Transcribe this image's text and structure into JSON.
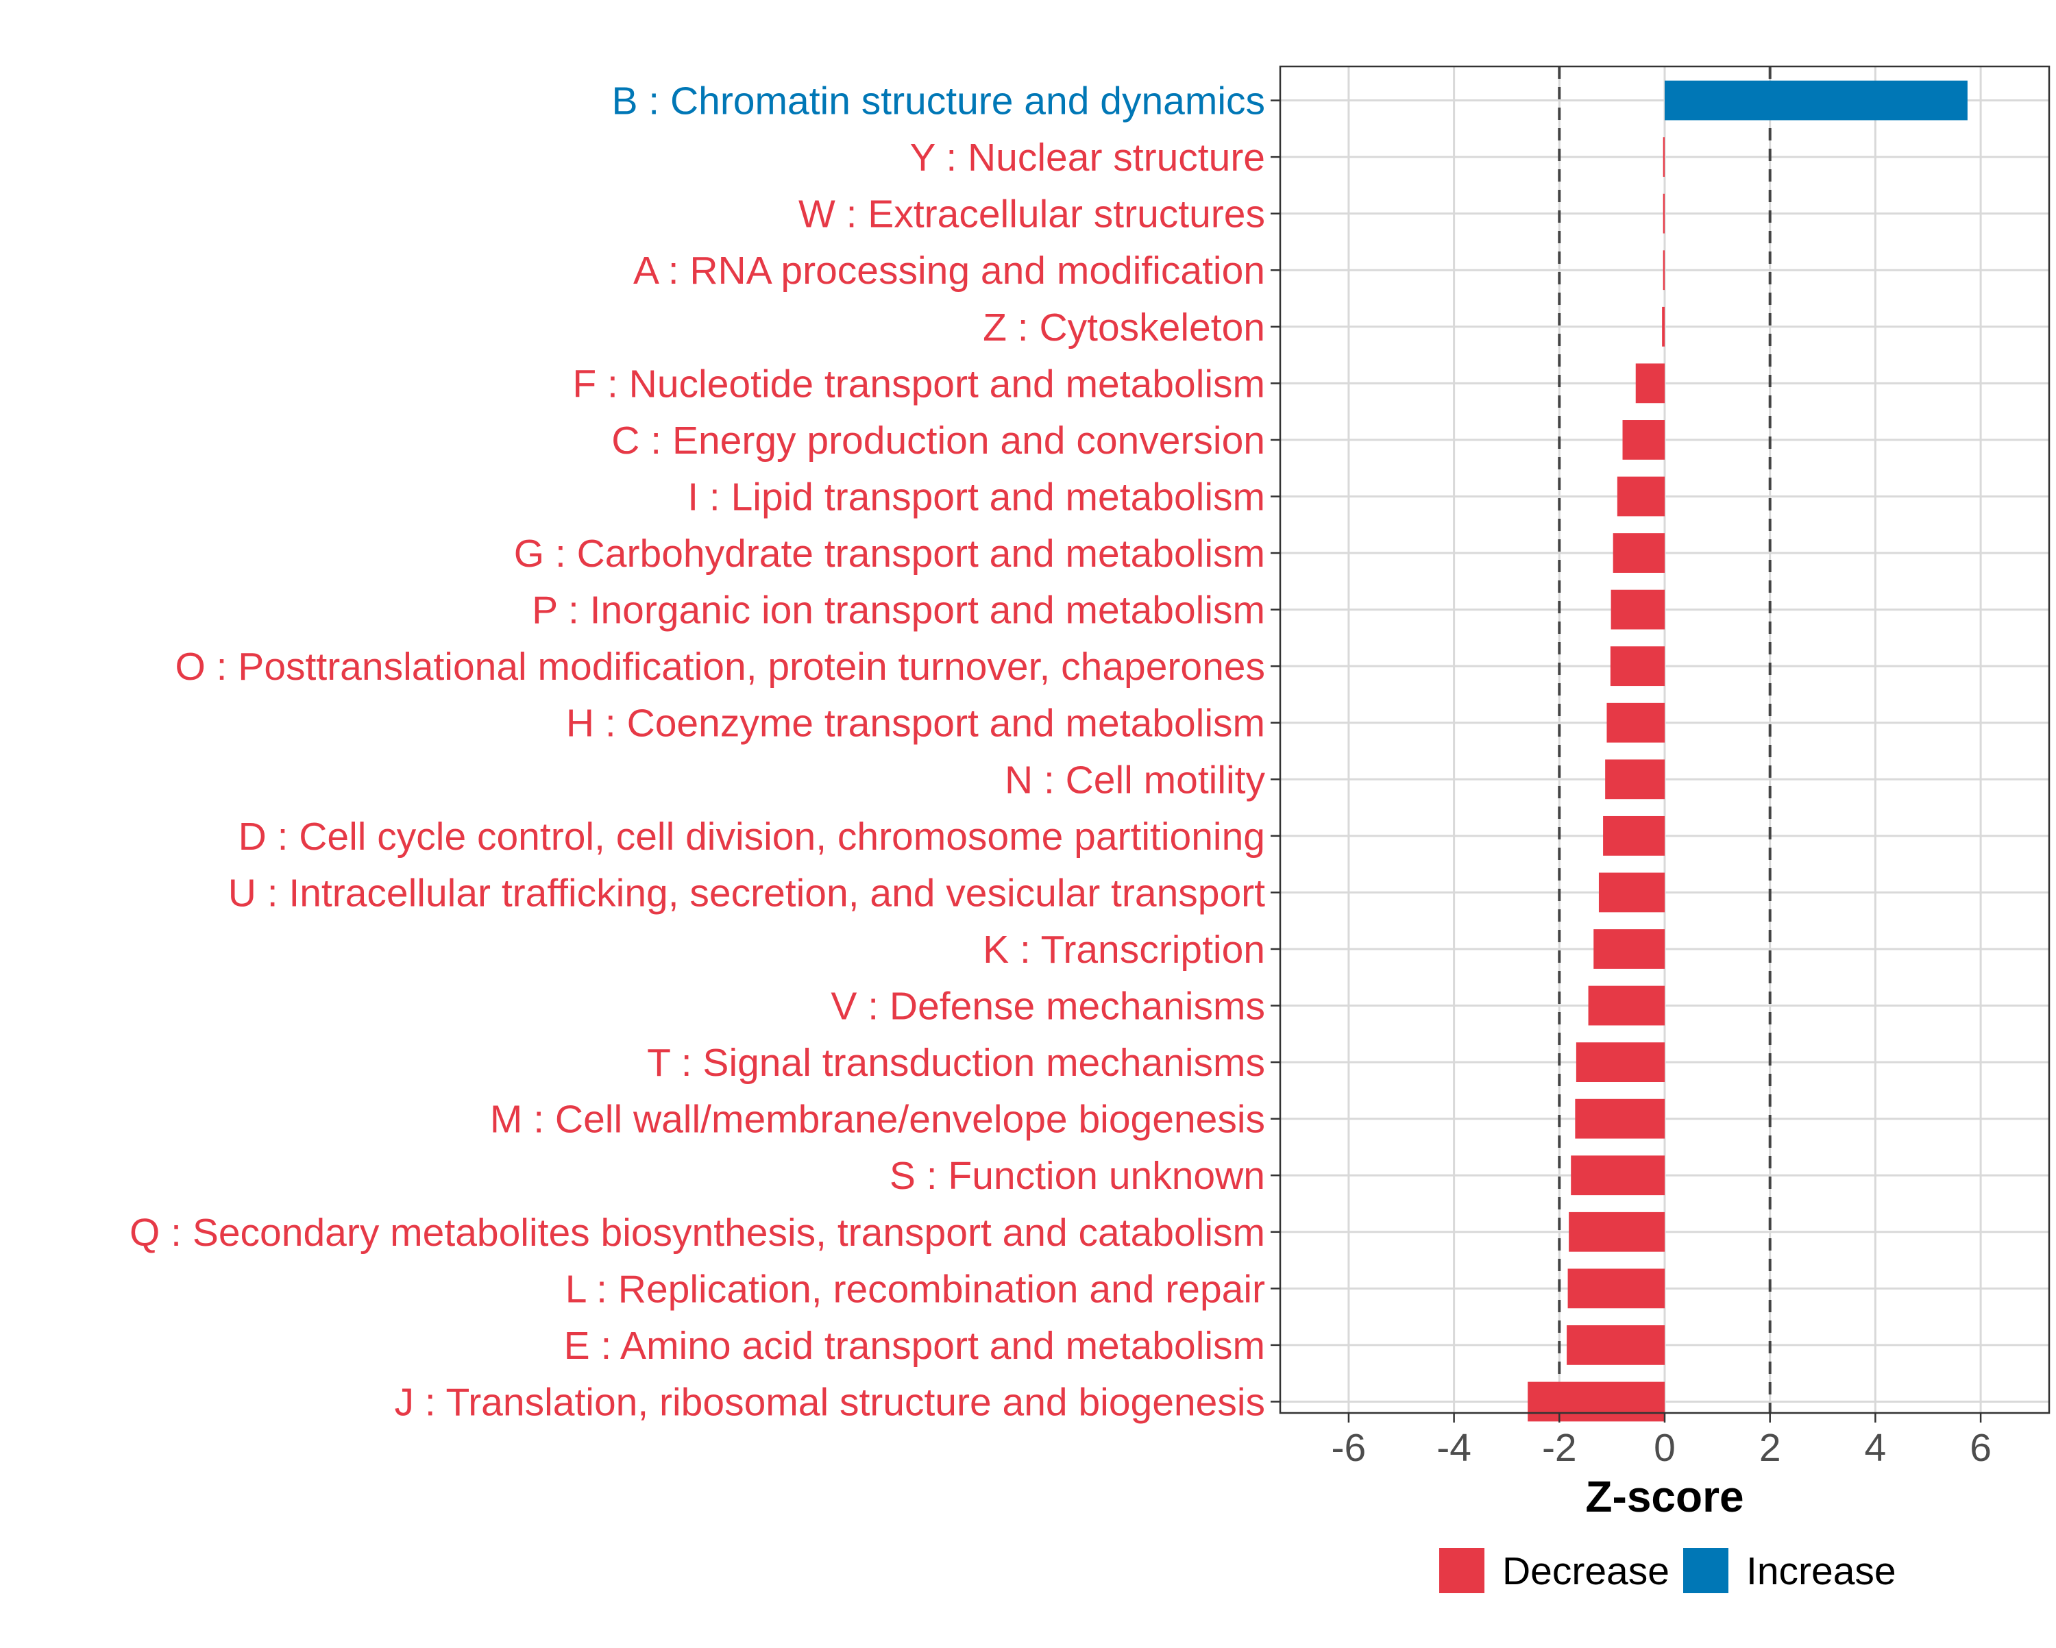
{
  "chart_data": {
    "type": "bar",
    "orientation": "horizontal",
    "title": "",
    "xlabel": "Z-score",
    "ylabel": "",
    "xlim": [
      -7.3,
      7.3
    ],
    "xticks": [
      -6,
      -4,
      -2,
      0,
      2,
      4,
      6
    ],
    "reference_lines": [
      -2,
      2
    ],
    "grid": true,
    "legend_position": "bottom",
    "colors": {
      "Decrease": "#e63946",
      "Increase": "#0077b6"
    },
    "legend": [
      {
        "label": "Decrease",
        "color": "#e63946"
      },
      {
        "label": "Increase",
        "color": "#0077b6"
      }
    ],
    "categories": [
      "B : Chromatin structure and dynamics",
      "Y : Nuclear structure",
      "W : Extracellular structures",
      "A : RNA processing and modification",
      "Z : Cytoskeleton",
      "F : Nucleotide transport and metabolism",
      "C : Energy production and conversion",
      "I : Lipid transport and metabolism",
      "G : Carbohydrate transport and metabolism",
      "P : Inorganic ion transport and metabolism",
      "O : Posttranslational modification, protein turnover, chaperones",
      "H : Coenzyme transport and metabolism",
      "N : Cell motility",
      "D : Cell cycle control, cell division, chromosome partitioning",
      "U : Intracellular trafficking, secretion, and vesicular transport",
      "K : Transcription",
      "V : Defense mechanisms",
      "T : Signal transduction mechanisms",
      "M : Cell wall/membrane/envelope biogenesis",
      "S : Function unknown",
      "Q : Secondary metabolites biosynthesis, transport and catabolism",
      "L : Replication, recombination and repair",
      "E : Amino acid transport and metabolism",
      "J : Translation, ribosomal structure and biogenesis"
    ],
    "values": [
      5.75,
      -0.03,
      -0.03,
      -0.03,
      -0.05,
      -0.55,
      -0.8,
      -0.9,
      -0.98,
      -1.02,
      -1.03,
      -1.1,
      -1.13,
      -1.17,
      -1.25,
      -1.35,
      -1.45,
      -1.68,
      -1.7,
      -1.78,
      -1.82,
      -1.84,
      -1.86,
      -2.6
    ],
    "direction": [
      "Increase",
      "Decrease",
      "Decrease",
      "Decrease",
      "Decrease",
      "Decrease",
      "Decrease",
      "Decrease",
      "Decrease",
      "Decrease",
      "Decrease",
      "Decrease",
      "Decrease",
      "Decrease",
      "Decrease",
      "Decrease",
      "Decrease",
      "Decrease",
      "Decrease",
      "Decrease",
      "Decrease",
      "Decrease",
      "Decrease",
      "Decrease"
    ]
  }
}
